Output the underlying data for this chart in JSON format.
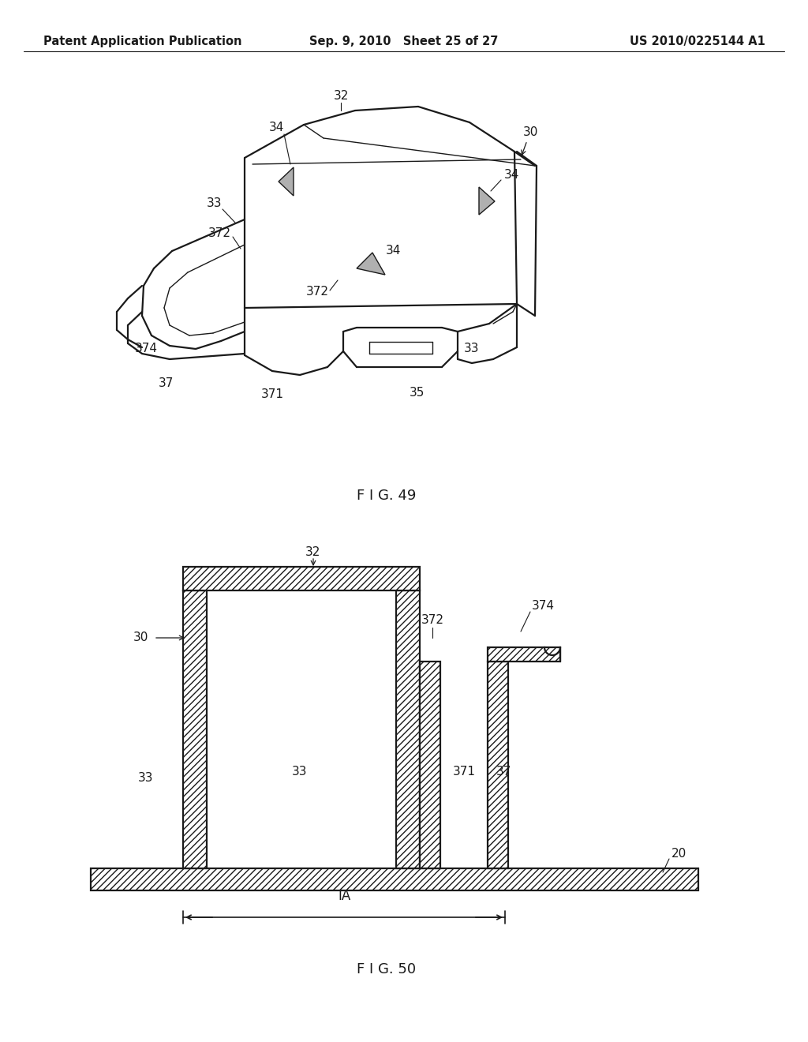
{
  "background_color": "#ffffff",
  "header_left": "Patent Application Publication",
  "header_center": "Sep. 9, 2010   Sheet 25 of 27",
  "header_right": "US 2010/0225144 A1",
  "fig49_caption": "F I G. 49",
  "fig50_caption": "F I G. 50",
  "line_color": "#1a1a1a",
  "label_fontsize": 11,
  "header_fontsize": 11
}
